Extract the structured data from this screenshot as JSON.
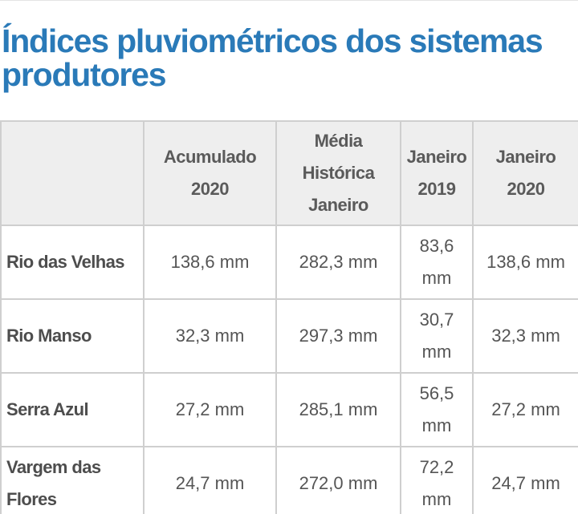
{
  "page": {
    "title": "Índices pluviométricos dos sistemas produtores"
  },
  "table": {
    "headers": [
      "",
      "Acumulado 2020",
      "Média Histórica Janeiro",
      "Janeiro 2019",
      "Janeiro 2020"
    ],
    "rows": [
      {
        "name": "Rio das Velhas",
        "acumulado_2020": "138,6 mm",
        "media_historica_janeiro": "282,3 mm",
        "janeiro_2019": "83,6 mm",
        "janeiro_2020": "138,6 mm"
      },
      {
        "name": "Rio Manso",
        "acumulado_2020": "32,3 mm",
        "media_historica_janeiro": "297,3 mm",
        "janeiro_2019": "30,7 mm",
        "janeiro_2020": "32,3 mm"
      },
      {
        "name": "Serra Azul",
        "acumulado_2020": "27,2 mm",
        "media_historica_janeiro": "285,1 mm",
        "janeiro_2019": "56,5 mm",
        "janeiro_2020": "27,2 mm"
      },
      {
        "name": "Vargem das Flores",
        "acumulado_2020": "24,7 mm",
        "media_historica_janeiro": "272,0 mm",
        "janeiro_2019": "72,2 mm",
        "janeiro_2020": "24,7 mm"
      }
    ]
  }
}
